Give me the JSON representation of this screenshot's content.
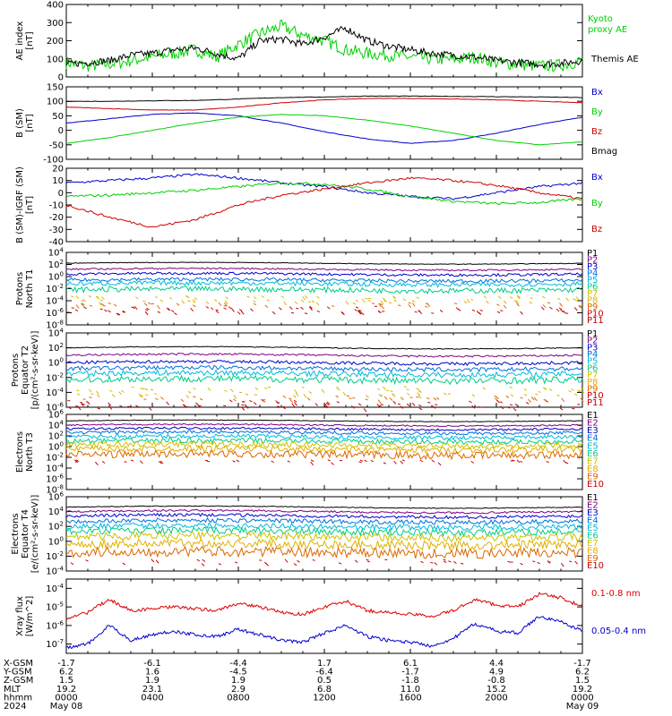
{
  "chart_data": [
    {
      "panel": "ae",
      "type": "line",
      "ylabel": "AE index [nT]",
      "ylim": [
        0,
        400
      ],
      "yticks": [
        "0",
        "100",
        "200",
        "300",
        "400"
      ],
      "series": [
        {
          "name": "Kyoto proxy AE",
          "color": "#00d000",
          "x": [
            0,
            1,
            2,
            3,
            4,
            5,
            6,
            7,
            8,
            9,
            10,
            11,
            12,
            13,
            14,
            15,
            16,
            17,
            18,
            19,
            20,
            21,
            22,
            23,
            24
          ],
          "values": [
            80,
            60,
            70,
            90,
            110,
            130,
            150,
            110,
            180,
            240,
            280,
            230,
            200,
            150,
            130,
            120,
            110,
            100,
            95,
            110,
            80,
            70,
            60,
            65,
            90
          ]
        },
        {
          "name": "Themis AE",
          "color": "#000000",
          "x": [
            0,
            1,
            2,
            3,
            4,
            5,
            6,
            7,
            8,
            9,
            10,
            11,
            12,
            13,
            14,
            15,
            16,
            17,
            18,
            19,
            20,
            21,
            22,
            23,
            24
          ],
          "values": [
            70,
            80,
            90,
            120,
            130,
            150,
            160,
            130,
            100,
            200,
            210,
            180,
            220,
            270,
            200,
            170,
            150,
            130,
            120,
            110,
            90,
            80,
            70,
            75,
            90
          ]
        }
      ]
    },
    {
      "panel": "bsm",
      "type": "line",
      "ylabel": "B (SM) [nT]",
      "ylim": [
        -100,
        150
      ],
      "yticks": [
        "-100",
        "-50",
        "0",
        "50",
        "100",
        "150"
      ],
      "series": [
        {
          "name": "Bx",
          "color": "#0000cc",
          "x": [
            0,
            2,
            4,
            6,
            8,
            10,
            12,
            14,
            16,
            18,
            20,
            22,
            24
          ],
          "values": [
            25,
            40,
            55,
            60,
            50,
            25,
            -5,
            -30,
            -45,
            -35,
            -10,
            20,
            45
          ]
        },
        {
          "name": "By",
          "color": "#00d000",
          "x": [
            0,
            2,
            4,
            6,
            8,
            10,
            12,
            14,
            16,
            18,
            20,
            22,
            24
          ],
          "values": [
            -45,
            -25,
            0,
            25,
            45,
            55,
            50,
            35,
            15,
            -10,
            -35,
            -50,
            -40
          ]
        },
        {
          "name": "Bz",
          "color": "#cc0000",
          "x": [
            0,
            2,
            4,
            6,
            8,
            10,
            12,
            14,
            16,
            18,
            20,
            22,
            24
          ],
          "values": [
            80,
            75,
            70,
            70,
            80,
            95,
            105,
            110,
            110,
            108,
            105,
            100,
            95
          ]
        },
        {
          "name": "Bmag",
          "color": "#000000",
          "x": [
            0,
            2,
            4,
            6,
            8,
            10,
            12,
            14,
            16,
            18,
            20,
            22,
            24
          ],
          "values": [
            100,
            100,
            102,
            103,
            108,
            113,
            115,
            118,
            118,
            117,
            116,
            115,
            113
          ]
        }
      ]
    },
    {
      "panel": "bdiff",
      "type": "line",
      "ylabel": "B (SM)-IGRF (SM) [nT]",
      "ylim": [
        -40,
        20
      ],
      "yticks": [
        "-40",
        "-30",
        "-20",
        "-10",
        "0",
        "10",
        "20"
      ],
      "series": [
        {
          "name": "Bx",
          "color": "#0000cc",
          "x": [
            0,
            2,
            4,
            6,
            8,
            10,
            12,
            14,
            16,
            18,
            20,
            22,
            24
          ],
          "values": [
            8,
            10,
            12,
            15,
            12,
            8,
            5,
            0,
            -3,
            -5,
            0,
            5,
            8
          ]
        },
        {
          "name": "By",
          "color": "#00d000",
          "x": [
            0,
            2,
            4,
            6,
            8,
            10,
            12,
            14,
            16,
            18,
            20,
            22,
            24
          ],
          "values": [
            -3,
            -2,
            0,
            2,
            5,
            8,
            7,
            3,
            -3,
            -7,
            -9,
            -8,
            -5
          ]
        },
        {
          "name": "Bz",
          "color": "#cc0000",
          "x": [
            0,
            2,
            4,
            6,
            8,
            10,
            12,
            14,
            16,
            18,
            20,
            22,
            24
          ],
          "values": [
            -10,
            -20,
            -28,
            -22,
            -10,
            -2,
            3,
            8,
            12,
            10,
            6,
            0,
            -5
          ]
        }
      ]
    },
    {
      "panel": "pnorth",
      "type": "line",
      "ylabel": "Protons North T1",
      "ylim_log": [
        -8,
        4
      ],
      "yticks": [
        "10^-8",
        "10^-6",
        "10^-4",
        "10^-2",
        "10^0",
        "10^2",
        "10^4"
      ],
      "channels": [
        "P1",
        "P2",
        "P3",
        "P4",
        "P5",
        "P6",
        "P7",
        "P8",
        "P9",
        "P10",
        "P11"
      ],
      "channel_colors": [
        "#000000",
        "#800080",
        "#0000cc",
        "#0070dd",
        "#00bbdd",
        "#00cc88",
        "#d0c000",
        "#e0b000",
        "#dd6600",
        "#cc0000",
        "#bb0000"
      ],
      "levels_log": [
        2.2,
        1.2,
        0.4,
        -0.6,
        -1.2,
        -2.2
      ]
    },
    {
      "panel": "peq",
      "type": "line",
      "ylabel": "Protons Equator T2 [p/(cm²-s-sr-keV)]",
      "ylim_log": [
        -6,
        4
      ],
      "yticks": [
        "10^-6",
        "10^-4",
        "10^-2",
        "10^0",
        "10^2",
        "10^4"
      ],
      "channels": [
        "P1",
        "P2",
        "P3",
        "P4",
        "P5",
        "P6",
        "P7",
        "P8",
        "P9",
        "P10",
        "P11"
      ],
      "channel_colors": [
        "#000000",
        "#800080",
        "#0000cc",
        "#0070dd",
        "#00bbdd",
        "#00cc88",
        "#d0c000",
        "#e0b000",
        "#dd6600",
        "#cc0000",
        "#bb0000"
      ],
      "levels_log": [
        2.0,
        1.0,
        0.0,
        -0.8,
        -1.5,
        -2.3
      ]
    },
    {
      "panel": "enorth",
      "type": "line",
      "ylabel": "Electrons North T3",
      "ylim_log": [
        -8,
        6
      ],
      "yticks": [
        "10^-8",
        "10^-6",
        "10^-4",
        "10^-2",
        "10^0",
        "10^2",
        "10^4",
        "10^6"
      ],
      "channels": [
        "E1",
        "E2",
        "E3",
        "E4",
        "E5",
        "E6",
        "E7",
        "E8",
        "E9",
        "E10"
      ],
      "channel_colors": [
        "#000000",
        "#800080",
        "#0000cc",
        "#0070dd",
        "#00bbdd",
        "#00cc88",
        "#d0c000",
        "#e0b000",
        "#dd6600",
        "#cc0000"
      ],
      "levels_log": [
        4.8,
        4.0,
        3.3,
        2.6,
        1.8,
        1.0,
        0.3,
        -0.5,
        -1.5
      ]
    },
    {
      "panel": "eeq",
      "type": "line",
      "ylabel": "Electrons Equator T4 [e/(cm²-s-sr-keV)]",
      "ylim_log": [
        -4,
        6
      ],
      "yticks": [
        "10^-4",
        "10^-2",
        "10^0",
        "10^2",
        "10^4",
        "10^6"
      ],
      "channels": [
        "E1",
        "E2",
        "E3",
        "E4",
        "E5",
        "E6",
        "E7",
        "E8",
        "E9",
        "E10"
      ],
      "channel_colors": [
        "#000000",
        "#800080",
        "#0000cc",
        "#0070dd",
        "#00bbdd",
        "#00cc88",
        "#d0c000",
        "#e0b000",
        "#dd6600",
        "#cc0000"
      ],
      "levels_log": [
        4.6,
        4.0,
        3.4,
        2.7,
        2.0,
        1.3,
        0.6,
        -0.4,
        -1.5
      ]
    },
    {
      "panel": "xray",
      "type": "line",
      "ylabel": "Xray flux [W/m^2]",
      "ylim_log": [
        -7.5,
        -3.5
      ],
      "yticks": [
        "10^-7",
        "10^-6",
        "10^-5",
        "10^-4"
      ],
      "series": [
        {
          "name": "0.1-0.8 nm",
          "color": "#dd0000",
          "x": [
            0,
            1,
            2,
            3,
            4,
            5,
            6,
            7,
            8,
            9,
            10,
            11,
            12,
            13,
            14,
            15,
            16,
            17,
            18,
            19,
            20,
            21,
            22,
            23,
            24
          ],
          "values": [
            -5.6,
            -5.3,
            -4.6,
            -5.2,
            -5.1,
            -5.0,
            -5.1,
            -5.2,
            -4.8,
            -5.0,
            -5.3,
            -5.4,
            -5.0,
            -4.7,
            -5.2,
            -5.3,
            -5.4,
            -5.5,
            -5.2,
            -4.6,
            -4.9,
            -5.0,
            -4.3,
            -4.5,
            -5.0
          ]
        },
        {
          "name": "0.05-0.4 nm",
          "color": "#0000cc",
          "x": [
            0,
            1,
            2,
            3,
            4,
            5,
            6,
            7,
            8,
            9,
            10,
            11,
            12,
            13,
            14,
            15,
            16,
            17,
            18,
            19,
            20,
            21,
            22,
            23,
            24
          ],
          "values": [
            -7.2,
            -7.0,
            -6.0,
            -6.8,
            -6.5,
            -6.3,
            -6.5,
            -6.6,
            -6.2,
            -6.5,
            -6.8,
            -6.9,
            -6.4,
            -6.0,
            -6.6,
            -6.8,
            -6.9,
            -7.1,
            -6.7,
            -5.9,
            -6.3,
            -6.4,
            -5.5,
            -5.8,
            -6.3
          ]
        }
      ]
    }
  ],
  "footer": {
    "rows": [
      {
        "label": "X-GSM",
        "values": [
          "-1.7",
          "-6.1",
          "-4.4",
          "1.7",
          "6.1",
          "4.4",
          "-1.7"
        ]
      },
      {
        "label": "Y-GSM",
        "values": [
          "6.2",
          "1.6",
          "-4.5",
          "-6.4",
          "-1.7",
          "4.9",
          "6.2"
        ]
      },
      {
        "label": "Z-GSM",
        "values": [
          "1.5",
          "1.9",
          "1.9",
          "0.5",
          "-1.8",
          "-0.8",
          "1.5"
        ]
      },
      {
        "label": "MLT",
        "values": [
          "19.2",
          "23.1",
          "2.9",
          "6.8",
          "11.0",
          "15.2",
          "19.2"
        ]
      },
      {
        "label": "hhmm",
        "values": [
          "0000",
          "0400",
          "0800",
          "1200",
          "1600",
          "2000",
          "0000"
        ]
      },
      {
        "label": "2024",
        "values": [
          "May 08",
          "",
          "",
          "",
          "",
          "",
          "May 09"
        ]
      }
    ]
  },
  "legends": {
    "ae": [
      {
        "text": "Kyoto",
        "color": "#00d000"
      },
      {
        "text": "proxy AE",
        "color": "#00d000"
      },
      {
        "text": "Themis AE",
        "color": "#000000"
      }
    ],
    "bsm": [
      {
        "text": "Bx",
        "color": "#0000cc"
      },
      {
        "text": "By",
        "color": "#00d000"
      },
      {
        "text": "Bz",
        "color": "#cc0000"
      },
      {
        "text": "Bmag",
        "color": "#000000"
      }
    ],
    "bdiff": [
      {
        "text": "Bx",
        "color": "#0000cc"
      },
      {
        "text": "By",
        "color": "#00d000"
      },
      {
        "text": "Bz",
        "color": "#cc0000"
      }
    ],
    "xray": [
      {
        "text": "0.1-0.8 nm",
        "color": "#dd0000"
      },
      {
        "text": "0.05-0.4 nm",
        "color": "#0000cc"
      }
    ]
  }
}
